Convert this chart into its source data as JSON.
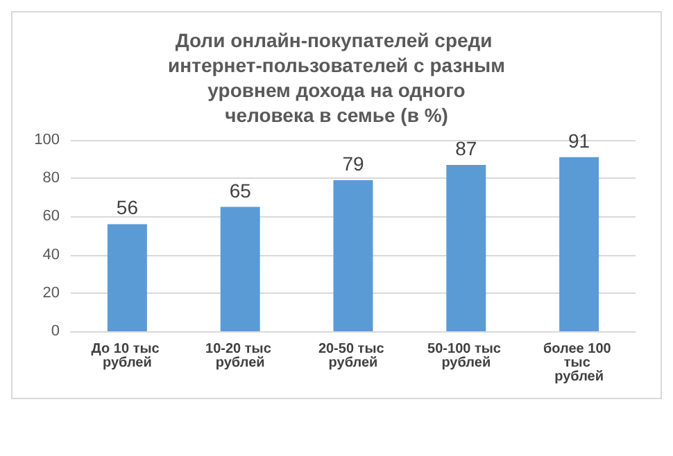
{
  "chart_data": {
    "type": "bar",
    "title": "Доли онлайн-покупателей среди интернет-пользователей с разным уровнем дохода на одного человека в семье (в %)",
    "categories": [
      "До 10 тыс рублей",
      "10-20 тыс рублей",
      "20-50 тыс рублей",
      "50-100 тыс рублей",
      "более 100 тыс рублей"
    ],
    "values": [
      56,
      65,
      79,
      87,
      91
    ],
    "color": "#5b9bd5",
    "ylim": [
      0,
      100
    ],
    "yticks": [
      0,
      20,
      40,
      60,
      80,
      100
    ],
    "grid": "y",
    "data_labels": true
  }
}
